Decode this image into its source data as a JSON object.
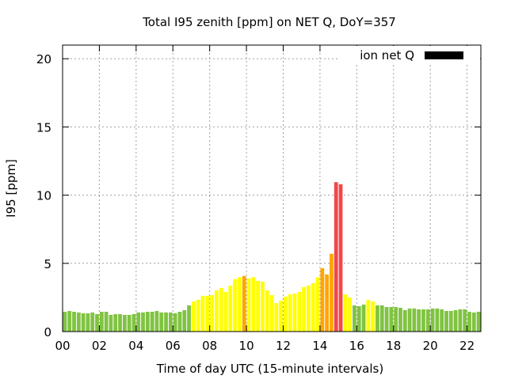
{
  "chart_data": {
    "type": "bar",
    "title": "Total I95 zenith [ppm] on NET Q, DoY=357",
    "xlabel": "Time of day UTC (15-minute intervals)",
    "ylabel": "I95 [ppm]",
    "ylim": [
      0,
      21
    ],
    "xlim_hours": [
      0,
      22.75
    ],
    "bar_step_hours": 0.25,
    "grid": true,
    "x_ticks": [
      "00",
      "02",
      "04",
      "06",
      "08",
      "10",
      "12",
      "14",
      "16",
      "18",
      "20",
      "22"
    ],
    "y_ticks": [
      "0",
      "5",
      "10",
      "15",
      "20"
    ],
    "legend": {
      "label": "ion net Q",
      "placement": "top-right",
      "color": "#000000"
    },
    "color_thresholds": [
      {
        "max": 2,
        "color": "#80c342"
      },
      {
        "max": 4,
        "color": "#ffff00"
      },
      {
        "max": 7,
        "color": "#ffa500"
      },
      {
        "max": 100,
        "color": "#f04848"
      }
    ],
    "values": [
      1.45,
      1.51,
      1.45,
      1.4,
      1.34,
      1.34,
      1.4,
      1.28,
      1.45,
      1.45,
      1.22,
      1.28,
      1.28,
      1.22,
      1.22,
      1.28,
      1.4,
      1.4,
      1.45,
      1.45,
      1.51,
      1.4,
      1.4,
      1.4,
      1.34,
      1.45,
      1.57,
      1.92,
      2.21,
      2.33,
      2.62,
      2.62,
      2.67,
      3.02,
      3.2,
      2.91,
      3.37,
      3.84,
      3.98,
      4.07,
      3.9,
      3.98,
      3.72,
      3.66,
      3.02,
      2.67,
      2.09,
      2.27,
      2.56,
      2.73,
      2.79,
      2.91,
      3.26,
      3.37,
      3.55,
      3.98,
      4.65,
      4.19,
      5.7,
      10.95,
      10.8,
      2.73,
      2.5,
      1.92,
      1.86,
      1.98,
      2.33,
      2.21,
      1.92,
      1.92,
      1.8,
      1.8,
      1.8,
      1.74,
      1.57,
      1.69,
      1.69,
      1.63,
      1.63,
      1.63,
      1.69,
      1.69,
      1.63,
      1.51,
      1.51,
      1.57,
      1.63,
      1.63,
      1.45,
      1.4,
      1.45,
      1.4
    ]
  }
}
